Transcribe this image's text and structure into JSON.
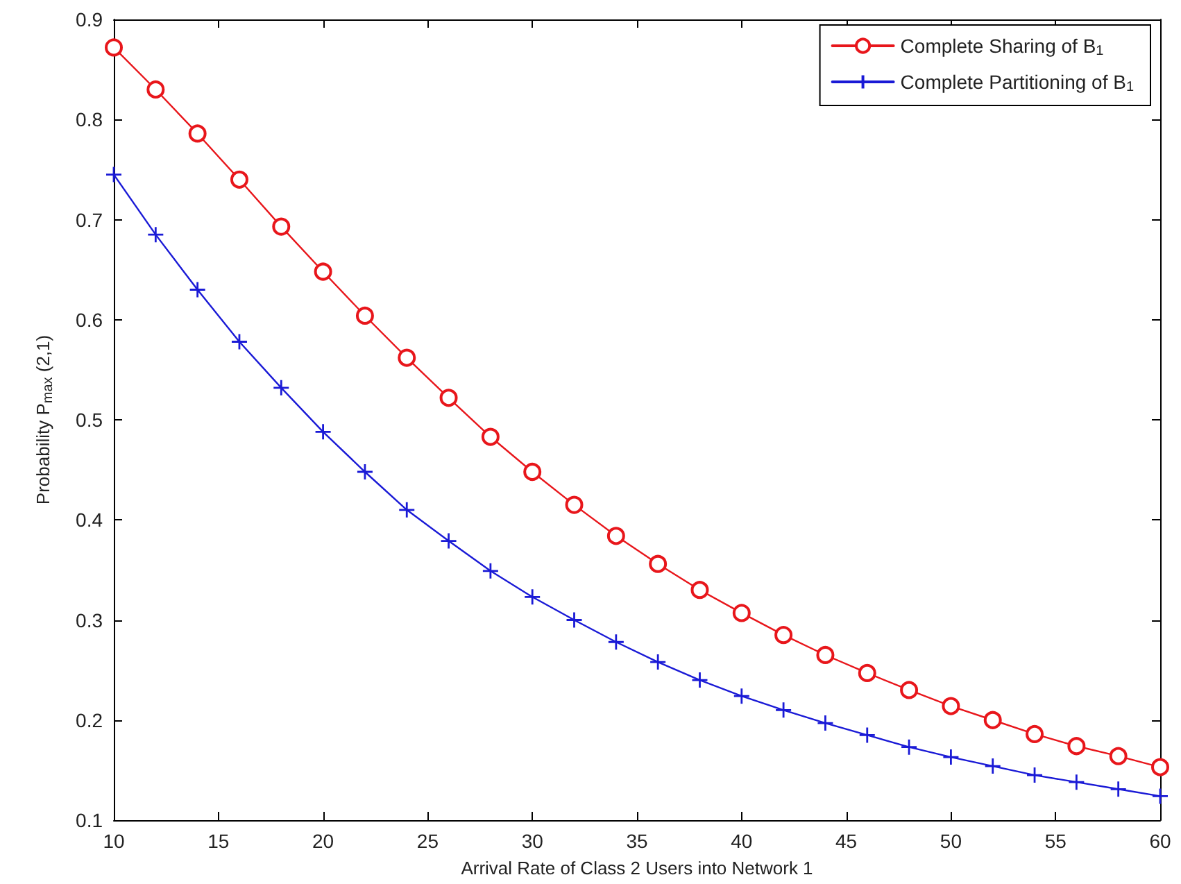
{
  "chart_data": {
    "type": "line",
    "xlabel": "Arrival Rate of Class 2 Users into Network 1",
    "ylabel": "Probability P$_{max}$ (2,1)",
    "x": [
      10,
      12,
      14,
      16,
      18,
      20,
      22,
      24,
      26,
      28,
      30,
      32,
      34,
      36,
      38,
      40,
      42,
      44,
      46,
      48,
      50,
      52,
      54,
      56,
      58,
      60
    ],
    "series": [
      {
        "name": "Complete Sharing of B$_{1}$",
        "color": "#e8161b",
        "marker": "circle",
        "values": [
          0.872,
          0.83,
          0.786,
          0.74,
          0.693,
          0.648,
          0.604,
          0.562,
          0.522,
          0.483,
          0.448,
          0.415,
          0.384,
          0.356,
          0.33,
          0.307,
          0.285,
          0.265,
          0.247,
          0.23,
          0.214,
          0.2,
          0.186,
          0.174,
          0.164,
          0.153
        ]
      },
      {
        "name": "Complete Partitioning of B$_{1}$",
        "color": "#1a1ad6",
        "marker": "cross",
        "values": [
          0.745,
          0.685,
          0.63,
          0.578,
          0.532,
          0.488,
          0.448,
          0.41,
          0.379,
          0.349,
          0.323,
          0.3,
          0.278,
          0.258,
          0.24,
          0.224,
          0.21,
          0.197,
          0.185,
          0.173,
          0.163,
          0.154,
          0.145,
          0.138,
          0.131,
          0.124
        ]
      }
    ],
    "xlim": [
      10,
      60
    ],
    "xticks": [
      10,
      15,
      20,
      25,
      30,
      35,
      40,
      45,
      50,
      55,
      60
    ],
    "ylim": [
      0.1,
      0.9
    ],
    "yticks": [
      0.1,
      0.2,
      0.3,
      0.4,
      0.5,
      0.6,
      0.7,
      0.8,
      0.9
    ],
    "grid": false,
    "legend": "top right",
    "line_style": "solid"
  }
}
